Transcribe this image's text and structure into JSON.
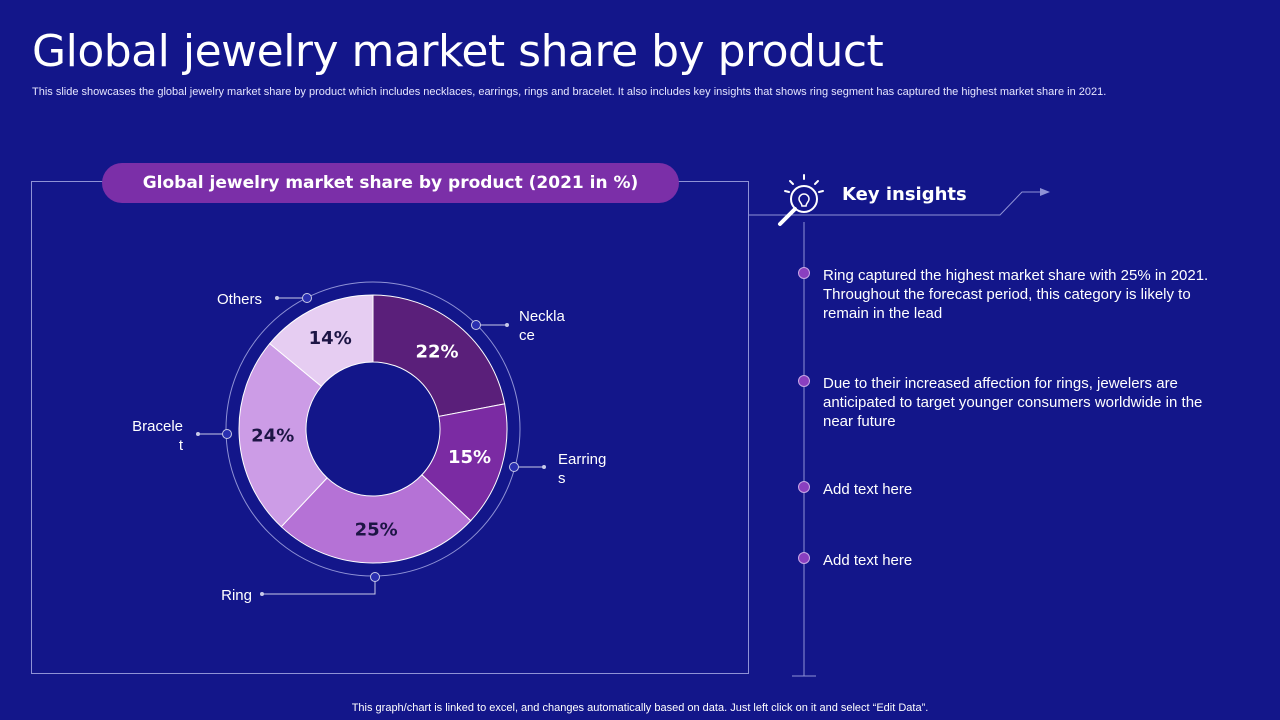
{
  "page": {
    "title": "Global jewelry market share by product",
    "subtitle": "This slide showcases the global jewelry market share by product which includes necklaces, earrings, rings and bracelet. It also includes key insights that shows ring segment has captured the highest market share in 2021.",
    "footer": "This graph/chart is linked to excel, and changes automatically based on data. Just left click on it and select “Edit Data”."
  },
  "chart_data": {
    "type": "pie",
    "variant": "donut",
    "title": "Global jewelry market share by product (2021 in %)",
    "categories": [
      "Necklace",
      "Earrings",
      "Ring",
      "Bracelet",
      "Others"
    ],
    "values": [
      22,
      15,
      25,
      24,
      14
    ],
    "value_labels": [
      "22%",
      "15%",
      "25%",
      "24%",
      "14%"
    ],
    "legend_labels": [
      [
        "Neckla",
        "ce"
      ],
      [
        "Earring",
        "s"
      ],
      [
        "Ring"
      ],
      [
        "Bracele",
        "t"
      ],
      [
        "Others"
      ]
    ],
    "colors": [
      "#5a1f7a",
      "#7b2ba3",
      "#b572d6",
      "#cc9ce6",
      "#e6cdf2"
    ],
    "label_colors": [
      "#ffffff",
      "#ffffff",
      "#1d1545",
      "#1d1545",
      "#1d1545"
    ],
    "unit": "%"
  },
  "insights": {
    "heading": "Key insights",
    "items": [
      "Ring captured the highest market share with 25% in 2021. Throughout  the forecast period, this category is likely to remain in the lead",
      "Due to their increased affection for rings, jewelers are anticipated to target younger consumers worldwide in the near future",
      "Add text here",
      "Add text here"
    ]
  },
  "colors": {
    "background": "#13168a",
    "accent_purple": "#7b2fa8",
    "frame_line": "#8f92d6",
    "bullet": "#8a3fc0"
  },
  "icons": {
    "insights_icon": "lightbulb-magnifier-icon"
  }
}
